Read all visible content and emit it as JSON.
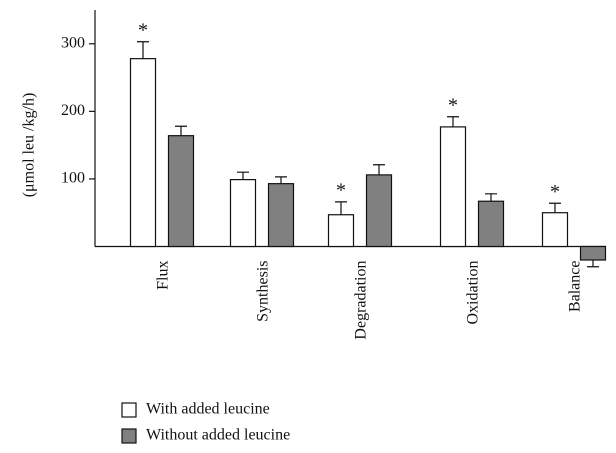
{
  "chart_data": {
    "type": "bar",
    "y_label": "(μmol leu /kg/h)",
    "categories": [
      "Flux",
      "Synthesis",
      "Degradation",
      "Oxidation",
      "Balance"
    ],
    "series": [
      {
        "name": "With added leucine",
        "color": "#ffffff",
        "values": [
          278,
          99,
          47,
          177,
          50
        ],
        "errors": [
          25,
          11,
          19,
          15,
          14
        ],
        "markers": [
          "*",
          null,
          "*",
          "*",
          "*"
        ]
      },
      {
        "name": "Without added leucine",
        "color": "#808080",
        "values": [
          164,
          93,
          106,
          67,
          -20
        ],
        "errors": [
          14,
          10,
          15,
          11,
          10
        ]
      }
    ],
    "ylim": [
      0,
      350
    ],
    "yticks": [
      100,
      200,
      300
    ]
  }
}
